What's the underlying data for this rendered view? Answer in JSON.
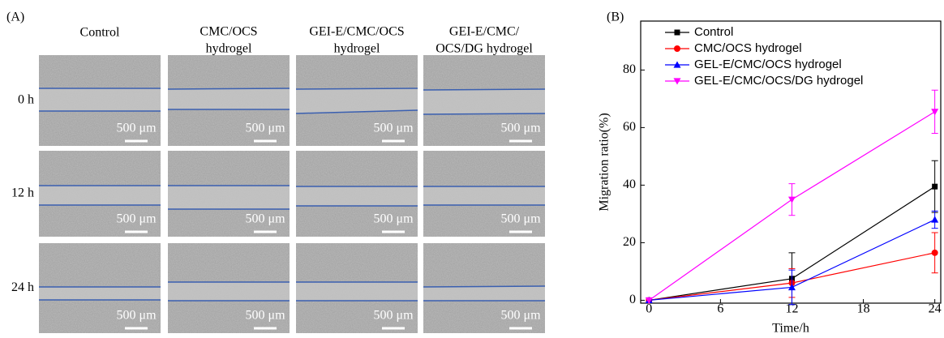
{
  "panel_a": {
    "label": "(A)",
    "columns": [
      [
        "Control"
      ],
      [
        "CMC/OCS",
        "hydrogel"
      ],
      [
        "GEI-E/CMC/OCS",
        "hydrogel"
      ],
      [
        "GEI-E/CMC/",
        "OCS/DG hydrogel"
      ]
    ],
    "rows": [
      "0 h",
      "12 h",
      "24 h"
    ],
    "scale_label": "500 μm"
  },
  "chart_data": {
    "type": "line",
    "label": "(B)",
    "x_label": "Time/h",
    "y_label": "Migration ratio(%)",
    "x": [
      0,
      12,
      24
    ],
    "xlim": [
      -0.7,
      24.5
    ],
    "ylim": [
      -1,
      97
    ],
    "xticks": [
      0,
      6,
      12,
      18,
      24
    ],
    "yticks": [
      0,
      20,
      40,
      60,
      80
    ],
    "legend": "top-left",
    "series": [
      {
        "name": "Control",
        "color": "#000000",
        "marker": "square",
        "values": [
          0,
          7.5,
          39.5
        ],
        "errors": [
          0,
          9,
          9
        ]
      },
      {
        "name": "CMC/OCS hydrogel",
        "color": "#ff0000",
        "marker": "circle",
        "values": [
          0,
          6,
          16.5
        ],
        "errors": [
          0,
          5,
          7
        ]
      },
      {
        "name": "GEL-E/CMC/OCS hydrogel",
        "color": "#0000ff",
        "marker": "triangle-up",
        "values": [
          0,
          4.5,
          28
        ],
        "errors": [
          0,
          6,
          3
        ]
      },
      {
        "name": "GEL-E/CMC/OCS/DG hydrogel",
        "color": "#ff00ff",
        "marker": "triangle-down",
        "values": [
          0,
          35,
          65.5
        ],
        "errors": [
          0,
          5.5,
          7.5
        ]
      }
    ]
  }
}
